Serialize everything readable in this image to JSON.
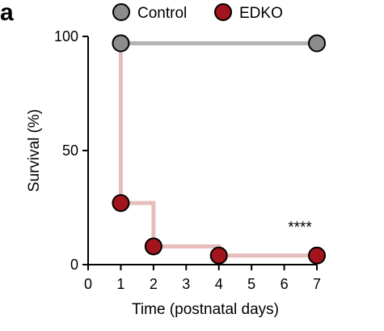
{
  "panel_label": "a",
  "chart_data": {
    "type": "line",
    "xlabel": "Time (postnatal days)",
    "ylabel": "Survival (%)",
    "xlim": [
      0,
      7
    ],
    "ylim": [
      0,
      100
    ],
    "xticks": [
      "0",
      "1",
      "2",
      "3",
      "4",
      "5",
      "6",
      "7"
    ],
    "yticks": [
      "0",
      "50",
      "100"
    ],
    "grid": false,
    "legend_position": "top",
    "step": true,
    "series": [
      {
        "name": "Control",
        "line_color": "#b3b3b3",
        "marker_color": "#8c8c8c",
        "x": [
          1,
          7
        ],
        "y": [
          97,
          97
        ]
      },
      {
        "name": "EDKO",
        "line_color": "#e6bcbc",
        "marker_color": "#a3151c",
        "x": [
          1,
          2,
          4,
          7
        ],
        "y": [
          27,
          8,
          4,
          4
        ]
      }
    ],
    "annotations": [
      "****"
    ]
  }
}
